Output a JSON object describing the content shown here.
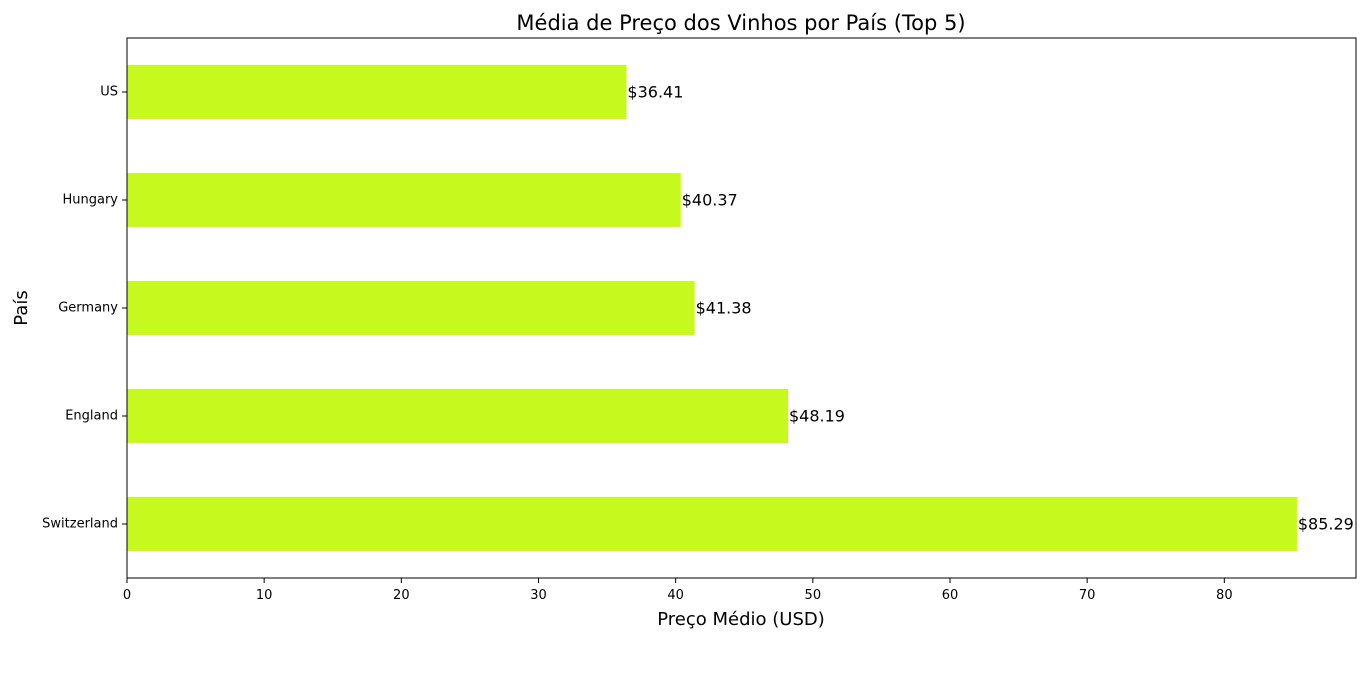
{
  "chart_data": {
    "type": "bar",
    "orientation": "horizontal",
    "title": "Média de Preço dos Vinhos por País (Top 5)",
    "xlabel": "Preço Médio (USD)",
    "ylabel": "País",
    "categories": [
      "Switzerland",
      "England",
      "Germany",
      "Hungary",
      "US"
    ],
    "values": [
      85.29,
      48.19,
      41.38,
      40.37,
      36.41
    ],
    "data_labels": [
      "$85.29",
      "$48.19",
      "$41.38",
      "$40.37",
      "$36.41"
    ],
    "xlim": [
      0,
      89.6
    ],
    "xticks": [
      0,
      10,
      20,
      30,
      40,
      50,
      60,
      70,
      80
    ],
    "grid": false,
    "legend": "none",
    "bar_color": "#c6fa1f"
  }
}
